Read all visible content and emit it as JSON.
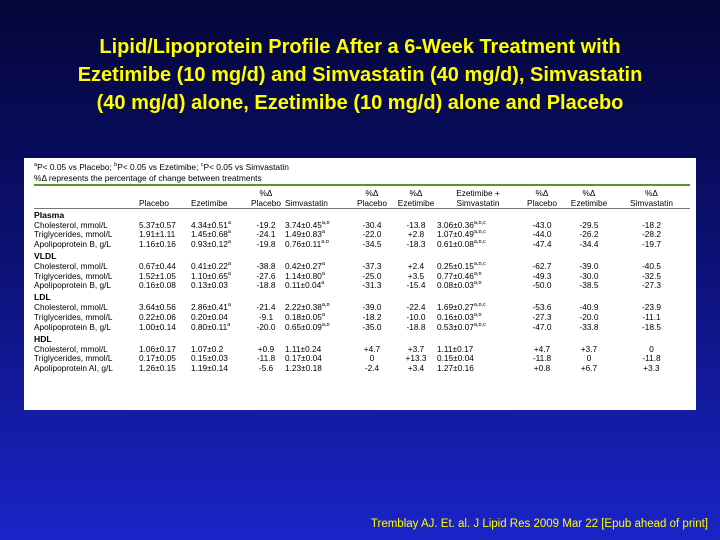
{
  "title_lines": [
    "Lipid/Lipoprotein Profile After a 6-Week Treatment with",
    "Ezetimibe (10 mg/d) and Simvastatin (40 mg/d), Simvastatin",
    "(40 mg/d) alone, Ezetimibe (10 mg/d) alone and Placebo"
  ],
  "notes": {
    "line1_parts": [
      "a",
      "P< 0.05 vs Placebo; ",
      "b",
      "P< 0.05 vs Ezetimibe; ",
      "c",
      "P< 0.05 vs Simvastatin"
    ],
    "line2": "%Δ represents the percentage of change between treatments"
  },
  "columns": [
    [
      "",
      ""
    ],
    [
      "Placebo",
      ""
    ],
    [
      "Ezetimibe",
      ""
    ],
    [
      "%Δ",
      "Placebo"
    ],
    [
      "Simvastatin",
      ""
    ],
    [
      "%Δ",
      "Placebo"
    ],
    [
      "%Δ",
      "Ezetimibe"
    ],
    [
      "Ezetimibe +",
      "Simvastatin"
    ],
    [
      "%Δ",
      "Placebo"
    ],
    [
      "%Δ",
      "Ezetimibe"
    ],
    [
      "%Δ",
      "Simvastatin"
    ]
  ],
  "sections": [
    {
      "name": "Plasma",
      "rows": [
        [
          [
            "Cholesterol, mmol/L",
            ""
          ],
          [
            "5.37±0.57",
            ""
          ],
          [
            "4.34±0.51",
            "a"
          ],
          [
            "-19.2",
            ""
          ],
          [
            "3.74±0.45",
            "a,b"
          ],
          [
            "-30.4",
            ""
          ],
          [
            "-13.8",
            ""
          ],
          [
            "3.06±0.36",
            "a,b,c"
          ],
          [
            "-43.0",
            ""
          ],
          [
            "-29.5",
            ""
          ],
          [
            "-18.2",
            ""
          ]
        ],
        [
          [
            "Triglycerides, mmol/L",
            ""
          ],
          [
            "1.91±1.11",
            ""
          ],
          [
            "1.45±0.68",
            "a"
          ],
          [
            "-24.1",
            ""
          ],
          [
            "1.49±0.83",
            "a"
          ],
          [
            "-22.0",
            ""
          ],
          [
            "+2.8",
            ""
          ],
          [
            "1.07±0.49",
            "a,b,c"
          ],
          [
            "-44.0",
            ""
          ],
          [
            "-26.2",
            ""
          ],
          [
            "-28.2",
            ""
          ]
        ],
        [
          [
            "Apolipoprotein B, g/L",
            ""
          ],
          [
            "1.16±0.16",
            ""
          ],
          [
            "0.93±0.12",
            "a"
          ],
          [
            "-19.8",
            ""
          ],
          [
            "0.76±0.11",
            "a,b"
          ],
          [
            "-34.5",
            ""
          ],
          [
            "-18.3",
            ""
          ],
          [
            "0.61±0.08",
            "a,b,c"
          ],
          [
            "-47.4",
            ""
          ],
          [
            "-34.4",
            ""
          ],
          [
            "-19.7",
            ""
          ]
        ]
      ]
    },
    {
      "name": "VLDL",
      "rows": [
        [
          [
            "Cholesterol, mmol/L",
            ""
          ],
          [
            "0.67±0.44",
            ""
          ],
          [
            "0.41±0.22",
            "a"
          ],
          [
            "-38.8",
            ""
          ],
          [
            "0.42±0.27",
            "a"
          ],
          [
            "-37.3",
            ""
          ],
          [
            "+2.4",
            ""
          ],
          [
            "0.25±0.15",
            "a,b,c"
          ],
          [
            "-62.7",
            ""
          ],
          [
            "-39.0",
            ""
          ],
          [
            "-40.5",
            ""
          ]
        ],
        [
          [
            "Triglycerides, mmol/L",
            ""
          ],
          [
            "1.52±1.05",
            ""
          ],
          [
            "1.10±0.65",
            "a"
          ],
          [
            "-27.6",
            ""
          ],
          [
            "1.14±0.80",
            "a"
          ],
          [
            "-25.0",
            ""
          ],
          [
            "+3.5",
            ""
          ],
          [
            "0.77±0.46",
            "a,b"
          ],
          [
            "-49.3",
            ""
          ],
          [
            "-30.0",
            ""
          ],
          [
            "-32.5",
            ""
          ]
        ],
        [
          [
            "Apolipoprotein B, g/L",
            ""
          ],
          [
            "0.16±0.08",
            ""
          ],
          [
            "0.13±0.03",
            ""
          ],
          [
            "-18.8",
            ""
          ],
          [
            "0.11±0.04",
            "a"
          ],
          [
            "-31.3",
            ""
          ],
          [
            "-15.4",
            ""
          ],
          [
            "0.08±0.03",
            "a,b"
          ],
          [
            "-50.0",
            ""
          ],
          [
            "-38.5",
            ""
          ],
          [
            "-27.3",
            ""
          ]
        ]
      ]
    },
    {
      "name": "LDL",
      "rows": [
        [
          [
            "Cholesterol, mmol/L",
            ""
          ],
          [
            "3.64±0.56",
            ""
          ],
          [
            "2.86±0.41",
            "a"
          ],
          [
            "-21.4",
            ""
          ],
          [
            "2.22±0.38",
            "a,b"
          ],
          [
            "-39.0",
            ""
          ],
          [
            "-22.4",
            ""
          ],
          [
            "1.69±0.27",
            "a,b,c"
          ],
          [
            "-53.6",
            ""
          ],
          [
            "-40.9",
            ""
          ],
          [
            "-23.9",
            ""
          ]
        ],
        [
          [
            "Triglycerides, mmol/L",
            ""
          ],
          [
            "0.22±0.06",
            ""
          ],
          [
            "0.20±0.04",
            ""
          ],
          [
            "-9.1",
            ""
          ],
          [
            "0.18±0.05",
            "a"
          ],
          [
            "-18.2",
            ""
          ],
          [
            "-10.0",
            ""
          ],
          [
            "0.16±0.03",
            "a,b"
          ],
          [
            "-27.3",
            ""
          ],
          [
            "-20.0",
            ""
          ],
          [
            "-11.1",
            ""
          ]
        ],
        [
          [
            "Apolipoprotein B, g/L",
            ""
          ],
          [
            "1.00±0.14",
            ""
          ],
          [
            "0.80±0.11",
            "a"
          ],
          [
            "-20.0",
            ""
          ],
          [
            "0.65±0.09",
            "a,b"
          ],
          [
            "-35.0",
            ""
          ],
          [
            "-18.8",
            ""
          ],
          [
            "0.53±0.07",
            "a,b,c"
          ],
          [
            "-47.0",
            ""
          ],
          [
            "-33.8",
            ""
          ],
          [
            "-18.5",
            ""
          ]
        ]
      ]
    },
    {
      "name": "HDL",
      "rows": [
        [
          [
            "Cholesterol, mmol/L",
            ""
          ],
          [
            "1.06±0.17",
            ""
          ],
          [
            "1.07±0.2",
            ""
          ],
          [
            "+0.9",
            ""
          ],
          [
            "1.11±0.24",
            ""
          ],
          [
            "+4.7",
            ""
          ],
          [
            "+3.7",
            ""
          ],
          [
            "1.11±0.17",
            ""
          ],
          [
            "+4.7",
            ""
          ],
          [
            "+3.7",
            ""
          ],
          [
            "0",
            ""
          ]
        ],
        [
          [
            "Triglycerides, mmol/L",
            ""
          ],
          [
            "0.17±0.05",
            ""
          ],
          [
            "0.15±0.03",
            ""
          ],
          [
            "-11.8",
            ""
          ],
          [
            "0.17±0.04",
            ""
          ],
          [
            "0",
            ""
          ],
          [
            "+13.3",
            ""
          ],
          [
            "0.15±0.04",
            ""
          ],
          [
            "-11.8",
            ""
          ],
          [
            "0",
            ""
          ],
          [
            "-11.8",
            ""
          ]
        ],
        [
          [
            "Apolipoprotein AI, g/L",
            ""
          ],
          [
            "1.26±0.15",
            ""
          ],
          [
            "1.19±0.14",
            ""
          ],
          [
            "-5.6",
            ""
          ],
          [
            "1.23±0.18",
            ""
          ],
          [
            "-2.4",
            ""
          ],
          [
            "+3.4",
            ""
          ],
          [
            "1.27±0.16",
            ""
          ],
          [
            "+0.8",
            ""
          ],
          [
            "+6.7",
            ""
          ],
          [
            "+3.3",
            ""
          ]
        ]
      ]
    }
  ],
  "citation": "Tremblay AJ. Et. al. J Lipid Res 2009 Mar 22 [Epub ahead of print]"
}
